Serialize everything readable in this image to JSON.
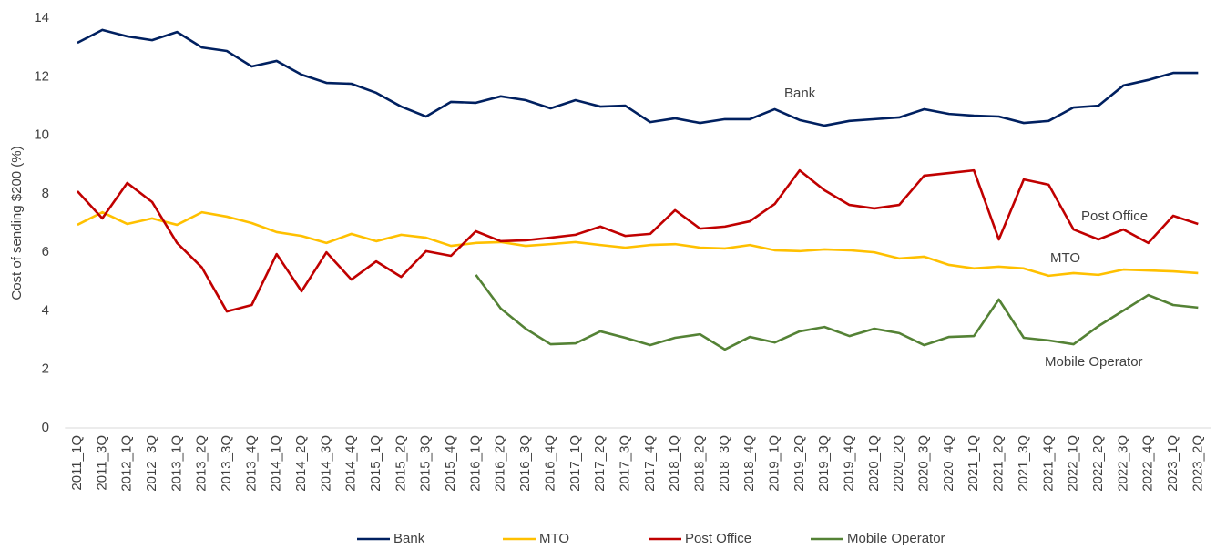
{
  "chart_data": {
    "type": "line",
    "y_label": "Cost of sending $200 (%)",
    "categories": [
      "2011_1Q",
      "2011_3Q",
      "2012_1Q",
      "2012_3Q",
      "2013_1Q",
      "2013_2Q",
      "2013_3Q",
      "2013_4Q",
      "2014_1Q",
      "2014_2Q",
      "2014_3Q",
      "2014_4Q",
      "2015_1Q",
      "2015_2Q",
      "2015_3Q",
      "2015_4Q",
      "2016_1Q",
      "2016_2Q",
      "2016_3Q",
      "2016_4Q",
      "2017_1Q",
      "2017_2Q",
      "2017_3Q",
      "2017_4Q",
      "2018_1Q",
      "2018_2Q",
      "2018_3Q",
      "2018_4Q",
      "2019_1Q",
      "2019_2Q",
      "2019_3Q",
      "2019_4Q",
      "2020_1Q",
      "2020_2Q",
      "2020_3Q",
      "2020_4Q",
      "2021_1Q",
      "2021_2Q",
      "2021_3Q",
      "2021_4Q",
      "2022_1Q",
      "2022_2Q",
      "2022_3Q",
      "2022_4Q",
      "2023_1Q",
      "2023_2Q"
    ],
    "series": [
      {
        "name": "Bank",
        "color": "#002060",
        "values": [
          13.16,
          13.6,
          13.38,
          13.25,
          13.53,
          13.0,
          12.88,
          12.35,
          12.54,
          12.07,
          11.79,
          11.76,
          11.45,
          10.98,
          10.64,
          11.14,
          11.11,
          11.33,
          11.2,
          10.92,
          11.2,
          10.98,
          11.01,
          10.45,
          10.58,
          10.42,
          10.55,
          10.55,
          10.89,
          10.52,
          10.33,
          10.49,
          10.55,
          10.61,
          10.89,
          10.73,
          10.67,
          10.64,
          10.42,
          10.49,
          10.95,
          11.01,
          11.7,
          11.89,
          12.13,
          12.13
        ]
      },
      {
        "name": "MTO",
        "color": "#FFC000",
        "values": [
          6.94,
          7.37,
          6.97,
          7.16,
          6.94,
          7.37,
          7.22,
          7.0,
          6.69,
          6.56,
          6.32,
          6.63,
          6.38,
          6.6,
          6.5,
          6.22,
          6.32,
          6.35,
          6.22,
          6.28,
          6.35,
          6.25,
          6.16,
          6.25,
          6.28,
          6.16,
          6.13,
          6.25,
          6.07,
          6.04,
          6.1,
          6.07,
          6.0,
          5.79,
          5.85,
          5.57,
          5.45,
          5.51,
          5.45,
          5.2,
          5.29,
          5.23,
          5.41,
          5.38,
          5.35,
          5.29
        ]
      },
      {
        "name": "Post Office",
        "color": "#C00000",
        "values": [
          8.09,
          7.16,
          8.37,
          7.72,
          6.32,
          5.48,
          3.98,
          4.2,
          5.94,
          4.67,
          6.0,
          5.07,
          5.69,
          5.16,
          6.04,
          5.88,
          6.72,
          6.38,
          6.41,
          6.5,
          6.6,
          6.88,
          6.56,
          6.63,
          7.44,
          6.81,
          6.88,
          7.06,
          7.65,
          8.8,
          8.12,
          7.62,
          7.5,
          7.62,
          8.62,
          8.71,
          8.8,
          6.44,
          8.49,
          8.31,
          6.78,
          6.44,
          6.78,
          6.32,
          7.25,
          6.97
        ]
      },
      {
        "name": "Mobile Operator",
        "color": "#548235",
        "values": [
          null,
          null,
          null,
          null,
          null,
          null,
          null,
          null,
          null,
          null,
          null,
          null,
          null,
          null,
          null,
          null,
          5.23,
          4.08,
          3.39,
          2.86,
          2.89,
          3.3,
          3.08,
          2.83,
          3.08,
          3.2,
          2.68,
          3.11,
          2.92,
          3.3,
          3.45,
          3.14,
          3.39,
          3.24,
          2.83,
          3.11,
          3.14,
          4.39,
          3.08,
          2.99,
          2.86,
          3.48,
          4.01,
          4.54,
          4.2,
          4.11
        ]
      }
    ],
    "annotations": [
      "Bank",
      "Post Office",
      "MTO",
      "Mobile Operator"
    ],
    "ylim": [
      0,
      14
    ],
    "yticks": [
      0,
      2,
      4,
      6,
      8,
      10,
      12,
      14
    ],
    "grid": false
  }
}
